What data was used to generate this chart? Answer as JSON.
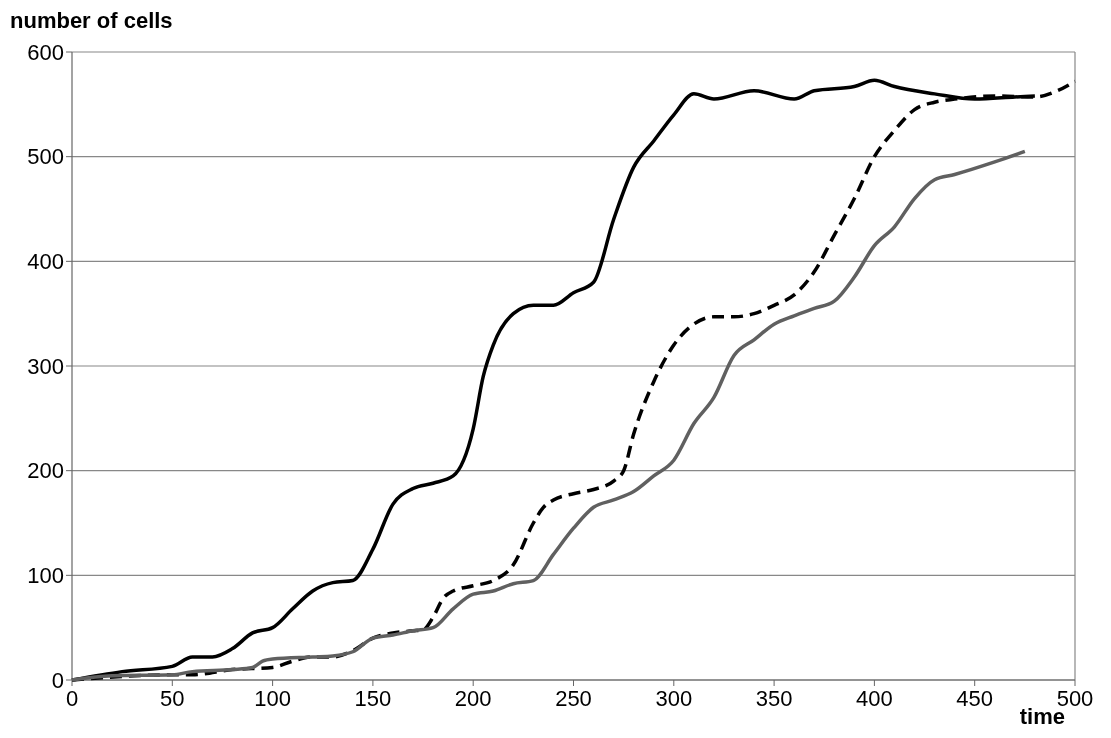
{
  "chart_data": {
    "type": "line",
    "xlabel": "time",
    "ylabel": "number of cells",
    "xlim": [
      0,
      500
    ],
    "ylim": [
      0,
      600
    ],
    "xticks": [
      0,
      50,
      100,
      150,
      200,
      250,
      300,
      350,
      400,
      450,
      500
    ],
    "yticks": [
      0,
      100,
      200,
      300,
      400,
      500,
      600
    ],
    "grid": "y",
    "series": [
      {
        "color": "#000000",
        "line_style": "solid",
        "x": [
          0,
          25,
          50,
          60,
          70,
          80,
          90,
          100,
          110,
          120,
          130,
          140,
          150,
          160,
          170,
          180,
          190,
          200,
          205,
          210,
          220,
          230,
          240,
          250,
          260,
          270,
          280,
          290,
          300,
          310,
          320,
          340,
          360,
          370,
          390,
          400,
          410,
          430,
          450,
          470,
          480
        ],
        "values": [
          0,
          8,
          13,
          22,
          22,
          30,
          45,
          50,
          68,
          85,
          93,
          95,
          125,
          168,
          183,
          188,
          195,
          240,
          290,
          320,
          350,
          358,
          358,
          370,
          380,
          440,
          490,
          515,
          540,
          560,
          555,
          563,
          555,
          563,
          567,
          573,
          567,
          560,
          555,
          557,
          558
        ]
      },
      {
        "color": "#000000",
        "line_style": "dashed",
        "x": [
          0,
          50,
          60,
          80,
          100,
          110,
          120,
          130,
          140,
          150,
          160,
          170,
          175,
          180,
          185,
          190,
          200,
          210,
          220,
          230,
          235,
          240,
          250,
          260,
          270,
          275,
          280,
          290,
          300,
          310,
          320,
          330,
          340,
          350,
          360,
          370,
          380,
          390,
          400,
          410,
          420,
          430,
          440,
          460,
          480,
          490,
          500
        ],
        "values": [
          0,
          5,
          5,
          10,
          12,
          18,
          22,
          22,
          28,
          40,
          45,
          47,
          48,
          60,
          78,
          85,
          90,
          95,
          110,
          150,
          165,
          172,
          178,
          182,
          190,
          200,
          235,
          285,
          320,
          340,
          347,
          347,
          350,
          358,
          368,
          390,
          425,
          460,
          500,
          525,
          545,
          552,
          555,
          558,
          557,
          562,
          572
        ]
      },
      {
        "color": "#606060",
        "line_style": "solid",
        "x": [
          0,
          20,
          50,
          60,
          80,
          90,
          95,
          100,
          120,
          130,
          140,
          150,
          160,
          170,
          180,
          190,
          200,
          210,
          220,
          230,
          240,
          250,
          260,
          270,
          280,
          290,
          300,
          310,
          320,
          330,
          340,
          350,
          360,
          370,
          380,
          390,
          400,
          410,
          420,
          430,
          440,
          460,
          475
        ],
        "values": [
          0,
          4,
          5,
          8,
          10,
          12,
          18,
          20,
          22,
          23,
          27,
          40,
          43,
          47,
          50,
          68,
          82,
          85,
          92,
          95,
          120,
          145,
          165,
          172,
          180,
          195,
          210,
          245,
          270,
          310,
          325,
          340,
          348,
          355,
          362,
          385,
          415,
          433,
          460,
          478,
          483,
          495,
          505
        ]
      }
    ]
  }
}
